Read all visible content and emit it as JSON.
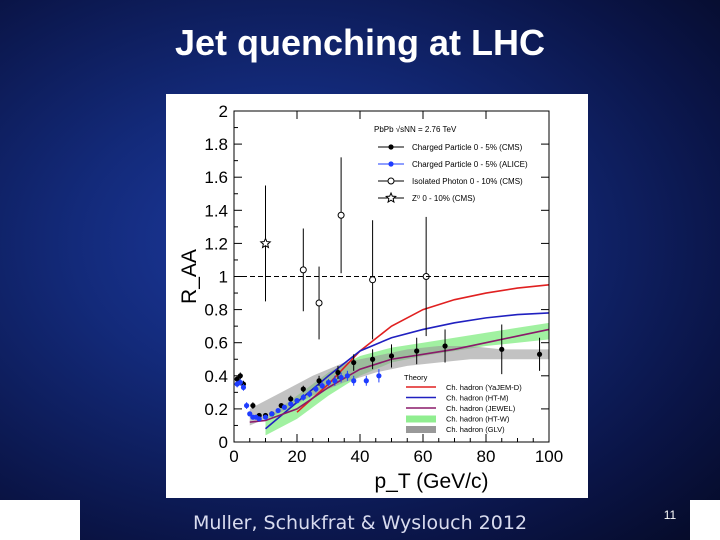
{
  "slide": {
    "title": "Jet quenching at LHC",
    "citation": "Muller, Schukfrat & Wyslouch 2012",
    "slide_number": "11"
  },
  "colors": {
    "background": "#132a7a",
    "cms_charged": "#000000",
    "alice_charged": "#1e3cff",
    "yajem": "#e02020",
    "ht_m": "#2020c0",
    "jewel": "#8a1a6a",
    "ht_w_band": "#90ee90",
    "glv_band": "#999999"
  },
  "chart_data": {
    "type": "scatter",
    "title": "",
    "xlabel": "p_T (GeV/c)",
    "ylabel": "R_AA",
    "xlim": [
      0,
      100
    ],
    "ylim": [
      0,
      2
    ],
    "x_ticks": [
      "0",
      "20",
      "40",
      "60",
      "80",
      "100"
    ],
    "y_ticks": [
      "0",
      "0.2",
      "0.4",
      "0.6",
      "0.8",
      "1",
      "1.2",
      "1.4",
      "1.6",
      "1.8",
      "2"
    ],
    "legend_header": "PbPb √sNN = 2.76 TeV",
    "theory_header": "Theory",
    "series": [
      {
        "name": "Charged Particle 0 - 5% (CMS)",
        "marker": "filled-circle",
        "points": [
          [
            1,
            0.38
          ],
          [
            2,
            0.4
          ],
          [
            3,
            0.35
          ],
          [
            6,
            0.22
          ],
          [
            8,
            0.16
          ],
          [
            10,
            0.16
          ],
          [
            12,
            0.17
          ],
          [
            15,
            0.22
          ],
          [
            18,
            0.26
          ],
          [
            22,
            0.32
          ],
          [
            27,
            0.37
          ],
          [
            33,
            0.42
          ],
          [
            38,
            0.48
          ],
          [
            44,
            0.5
          ],
          [
            50,
            0.52
          ],
          [
            58,
            0.55
          ],
          [
            67,
            0.58
          ],
          [
            85,
            0.56
          ],
          [
            97,
            0.53
          ]
        ],
        "err": [
          0.02,
          0.02,
          0.02,
          0.02,
          0.01,
          0.01,
          0.01,
          0.01,
          0.02,
          0.02,
          0.03,
          0.04,
          0.05,
          0.06,
          0.07,
          0.08,
          0.1,
          0.15,
          0.1
        ]
      },
      {
        "name": "Charged Particle 0 - 5% (ALICE)",
        "marker": "filled-circle",
        "points": [
          [
            1,
            0.35
          ],
          [
            2,
            0.36
          ],
          [
            3,
            0.33
          ],
          [
            4,
            0.22
          ],
          [
            5,
            0.17
          ],
          [
            6,
            0.15
          ],
          [
            7,
            0.15
          ],
          [
            8,
            0.14
          ],
          [
            10,
            0.15
          ],
          [
            12,
            0.17
          ],
          [
            14,
            0.19
          ],
          [
            16,
            0.21
          ],
          [
            18,
            0.23
          ],
          [
            20,
            0.25
          ],
          [
            22,
            0.27
          ],
          [
            24,
            0.29
          ],
          [
            26,
            0.32
          ],
          [
            28,
            0.34
          ],
          [
            30,
            0.36
          ],
          [
            32,
            0.37
          ],
          [
            34,
            0.39
          ],
          [
            36,
            0.4
          ],
          [
            38,
            0.37
          ],
          [
            42,
            0.37
          ],
          [
            46,
            0.4
          ]
        ],
        "err": [
          0.02,
          0.02,
          0.02,
          0.02,
          0.01,
          0.01,
          0.01,
          0.01,
          0.01,
          0.01,
          0.01,
          0.01,
          0.01,
          0.01,
          0.02,
          0.02,
          0.02,
          0.02,
          0.02,
          0.03,
          0.03,
          0.03,
          0.03,
          0.03,
          0.04
        ]
      },
      {
        "name": "Isolated Photon 0 - 10% (CMS)",
        "marker": "open-circle",
        "points": [
          [
            22,
            1.04
          ],
          [
            27,
            0.84
          ],
          [
            34,
            1.37
          ],
          [
            44,
            0.98
          ],
          [
            61,
            1.0
          ]
        ],
        "err": [
          0.25,
          0.22,
          0.35,
          0.36,
          0.36
        ]
      },
      {
        "name": "Z⁰ 0 - 10% (CMS)",
        "marker": "open-star",
        "points": [
          [
            10,
            1.2
          ]
        ],
        "err": [
          0.35
        ]
      }
    ],
    "theory": [
      {
        "name": "Ch. hadron (YaJEM-D)",
        "type": "line",
        "points": [
          [
            20,
            0.18
          ],
          [
            30,
            0.35
          ],
          [
            40,
            0.55
          ],
          [
            50,
            0.7
          ],
          [
            60,
            0.8
          ],
          [
            70,
            0.86
          ],
          [
            80,
            0.9
          ],
          [
            90,
            0.93
          ],
          [
            100,
            0.95
          ]
        ]
      },
      {
        "name": "Ch. hadron (HT-M)",
        "type": "line",
        "points": [
          [
            10,
            0.08
          ],
          [
            20,
            0.24
          ],
          [
            30,
            0.4
          ],
          [
            40,
            0.55
          ],
          [
            50,
            0.63
          ],
          [
            60,
            0.68
          ],
          [
            70,
            0.72
          ],
          [
            80,
            0.75
          ],
          [
            90,
            0.77
          ],
          [
            100,
            0.78
          ]
        ]
      },
      {
        "name": "Ch. hadron (JEWEL)",
        "type": "line",
        "points": [
          [
            5,
            0.12
          ],
          [
            10,
            0.13
          ],
          [
            20,
            0.2
          ],
          [
            30,
            0.33
          ],
          [
            40,
            0.44
          ],
          [
            50,
            0.5
          ],
          [
            60,
            0.53
          ],
          [
            70,
            0.56
          ],
          [
            80,
            0.6
          ],
          [
            90,
            0.64
          ],
          [
            100,
            0.68
          ]
        ]
      },
      {
        "name": "Ch. hadron (HT-W)",
        "type": "band",
        "points": [
          [
            10,
            0.04,
            0.14
          ],
          [
            20,
            0.14,
            0.28
          ],
          [
            30,
            0.28,
            0.42
          ],
          [
            40,
            0.4,
            0.52
          ],
          [
            50,
            0.48,
            0.57
          ],
          [
            60,
            0.52,
            0.6
          ],
          [
            70,
            0.55,
            0.63
          ],
          [
            80,
            0.58,
            0.66
          ],
          [
            90,
            0.6,
            0.69
          ],
          [
            100,
            0.62,
            0.72
          ]
        ]
      },
      {
        "name": "Ch. hadron (GLV)",
        "type": "band",
        "points": [
          [
            5,
            0.1,
            0.2
          ],
          [
            15,
            0.18,
            0.3
          ],
          [
            25,
            0.28,
            0.4
          ],
          [
            35,
            0.36,
            0.48
          ],
          [
            45,
            0.42,
            0.52
          ],
          [
            55,
            0.46,
            0.56
          ],
          [
            65,
            0.48,
            0.58
          ],
          [
            75,
            0.5,
            0.58
          ],
          [
            85,
            0.5,
            0.56
          ],
          [
            100,
            0.5,
            0.56
          ]
        ]
      }
    ]
  }
}
